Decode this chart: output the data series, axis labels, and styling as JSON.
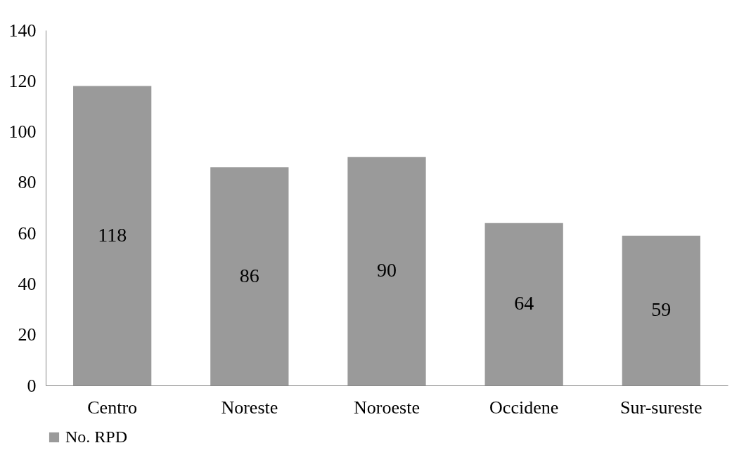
{
  "chart_data": {
    "type": "bar",
    "categories": [
      "Centro",
      "Noreste",
      "Noroeste",
      "Occidene",
      "Sur-sureste"
    ],
    "series": [
      {
        "name": "No. RPD",
        "color": "#9a9a9a",
        "values": [
          118,
          86,
          90,
          64,
          59
        ]
      }
    ],
    "ylim": [
      0,
      140
    ],
    "yticks": [
      0,
      20,
      40,
      60,
      80,
      100,
      120,
      140
    ],
    "grid": false,
    "legend": "bottom",
    "data_labels": true
  }
}
